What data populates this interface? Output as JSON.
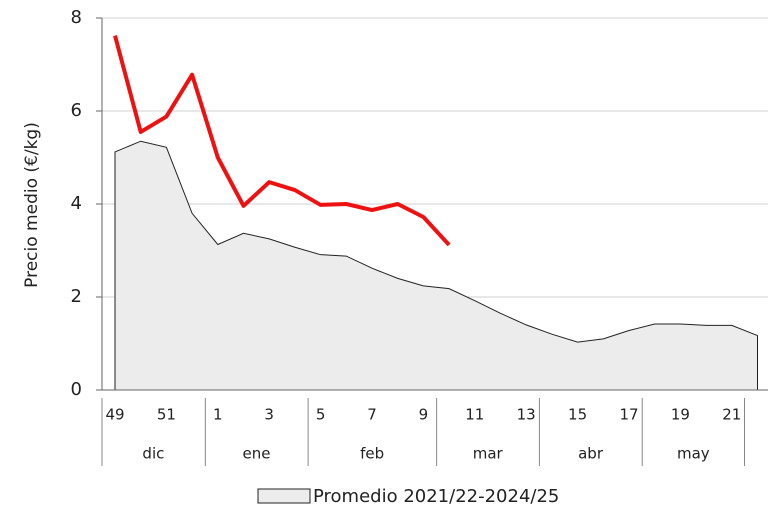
{
  "chart_data": {
    "type": "area_line",
    "y_label": "Precio medio (€/kg)",
    "categories": [
      "49",
      null,
      "51",
      null,
      "1",
      null,
      "3",
      null,
      "5",
      null,
      "7",
      null,
      "9",
      null,
      "11",
      null,
      "13",
      null,
      "15",
      null,
      "17",
      null,
      "19",
      null,
      "21",
      null
    ],
    "months": [
      "dic",
      "dic",
      "dic",
      "dic",
      "ene",
      "ene",
      "ene",
      "ene",
      "feb",
      "feb",
      "feb",
      "feb",
      "feb",
      "mar",
      "mar",
      "mar",
      "mar",
      "abr",
      "abr",
      "abr",
      "abr",
      "may",
      "may",
      "may",
      "may",
      null
    ],
    "series": [
      {
        "name": "Promedio 2021/22-2024/25",
        "color": "#ececec",
        "line_color": "#222222",
        "values": [
          5.12,
          5.35,
          5.22,
          3.8,
          3.13,
          3.37,
          3.25,
          3.07,
          2.91,
          2.88,
          2.62,
          2.4,
          2.24,
          2.18,
          1.92,
          1.65,
          1.4,
          1.2,
          1.03,
          1.1,
          1.28,
          1.42,
          1.42,
          1.39,
          1.39,
          1.17
        ]
      },
      {
        "color": "#ee1111",
        "values": [
          7.62,
          5.55,
          5.88,
          6.78,
          5.0,
          3.96,
          4.47,
          4.3,
          3.98,
          4.0,
          3.87,
          4.0,
          3.72,
          3.12,
          null,
          null,
          null,
          null,
          null,
          null,
          null,
          null,
          null,
          null,
          null,
          null
        ]
      }
    ],
    "ylim": [
      0,
      8
    ],
    "yticks": [
      0,
      2,
      4,
      6,
      8
    ],
    "grid": true
  }
}
